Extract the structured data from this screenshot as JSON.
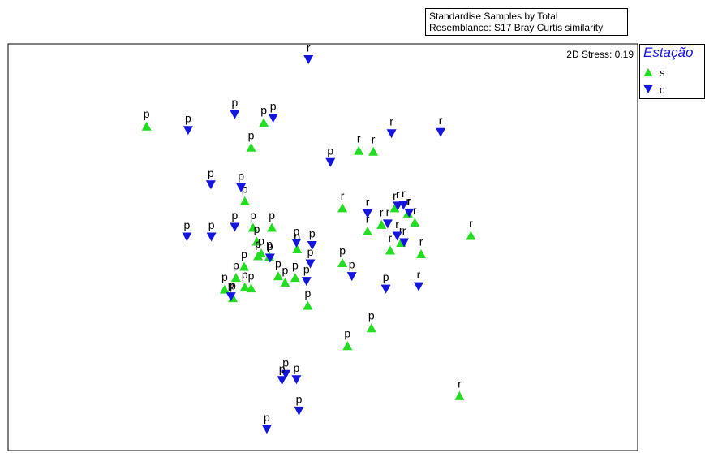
{
  "header": {
    "line1": "Standardise Samples by Total",
    "line2": "Resemblance: S17 Bray Curtis similarity"
  },
  "legend": {
    "title": "Estação",
    "items": [
      {
        "label": "s",
        "symbol": "triangle-up",
        "color": "#22dd22"
      },
      {
        "label": "c",
        "symbol": "triangle-down",
        "color": "#1515e0"
      }
    ]
  },
  "chart_data": {
    "type": "scatter",
    "title": "",
    "xlabel": "",
    "ylabel": "",
    "annotation": "2D Stress: 0.19",
    "xlim": [
      0,
      100
    ],
    "ylim": [
      0,
      100
    ],
    "grid": false,
    "axes_visible": false,
    "legend_position": "right",
    "series": [
      {
        "name": "s",
        "marker": "triangle-up",
        "color": "#22dd22",
        "points": [
          {
            "x": 22.0,
            "y": 79.8,
            "label": "p"
          },
          {
            "x": 40.6,
            "y": 80.7,
            "label": "p"
          },
          {
            "x": 38.6,
            "y": 74.6,
            "label": "p"
          },
          {
            "x": 37.6,
            "y": 61.4,
            "label": "p"
          },
          {
            "x": 38.9,
            "y": 54.9,
            "label": "p"
          },
          {
            "x": 41.9,
            "y": 54.9,
            "label": "p"
          },
          {
            "x": 39.5,
            "y": 51.5,
            "label": "p"
          },
          {
            "x": 40.2,
            "y": 48.6,
            "label": "p"
          },
          {
            "x": 39.7,
            "y": 47.9,
            "label": "p"
          },
          {
            "x": 45.9,
            "y": 49.6,
            "label": "p"
          },
          {
            "x": 41.5,
            "y": 47.8,
            "label": "p"
          },
          {
            "x": 37.5,
            "y": 45.3,
            "label": "p"
          },
          {
            "x": 36.2,
            "y": 42.6,
            "label": "p"
          },
          {
            "x": 37.6,
            "y": 40.3,
            "label": "p"
          },
          {
            "x": 38.6,
            "y": 40.0,
            "label": "p"
          },
          {
            "x": 42.9,
            "y": 43.0,
            "label": "p"
          },
          {
            "x": 44.0,
            "y": 41.4,
            "label": "p"
          },
          {
            "x": 45.6,
            "y": 42.6,
            "label": "p"
          },
          {
            "x": 34.4,
            "y": 39.7,
            "label": "p"
          },
          {
            "x": 35.7,
            "y": 37.6,
            "label": "p"
          },
          {
            "x": 47.6,
            "y": 35.7,
            "label": "p"
          },
          {
            "x": 53.1,
            "y": 46.2,
            "label": "p"
          },
          {
            "x": 57.7,
            "y": 30.2,
            "label": "p"
          },
          {
            "x": 53.9,
            "y": 25.8,
            "label": "p"
          },
          {
            "x": 55.7,
            "y": 73.8,
            "label": "r"
          },
          {
            "x": 58.0,
            "y": 73.6,
            "label": "r"
          },
          {
            "x": 53.1,
            "y": 59.7,
            "label": "r"
          },
          {
            "x": 57.1,
            "y": 54.0,
            "label": "r"
          },
          {
            "x": 59.3,
            "y": 55.6,
            "label": "r"
          },
          {
            "x": 61.4,
            "y": 59.7,
            "label": "r"
          },
          {
            "x": 63.5,
            "y": 58.4,
            "label": "r"
          },
          {
            "x": 64.6,
            "y": 56.1,
            "label": "r"
          },
          {
            "x": 62.4,
            "y": 51.2,
            "label": "r"
          },
          {
            "x": 60.7,
            "y": 49.3,
            "label": "r"
          },
          {
            "x": 65.6,
            "y": 48.4,
            "label": "r"
          },
          {
            "x": 73.5,
            "y": 52.9,
            "label": "r"
          },
          {
            "x": 71.7,
            "y": 13.5,
            "label": "r"
          }
        ]
      },
      {
        "name": "c",
        "marker": "triangle-down",
        "color": "#1515e0",
        "points": [
          {
            "x": 47.7,
            "y": 96.1,
            "label": "r"
          },
          {
            "x": 36.0,
            "y": 82.6,
            "label": "p"
          },
          {
            "x": 42.1,
            "y": 81.7,
            "label": "p"
          },
          {
            "x": 28.6,
            "y": 78.7,
            "label": "p"
          },
          {
            "x": 51.2,
            "y": 70.8,
            "label": "p"
          },
          {
            "x": 60.9,
            "y": 77.9,
            "label": "r"
          },
          {
            "x": 68.7,
            "y": 78.2,
            "label": "r"
          },
          {
            "x": 32.2,
            "y": 65.3,
            "label": "p"
          },
          {
            "x": 37.0,
            "y": 64.6,
            "label": "p"
          },
          {
            "x": 28.4,
            "y": 52.5,
            "label": "p"
          },
          {
            "x": 32.3,
            "y": 52.5,
            "label": "p"
          },
          {
            "x": 36.0,
            "y": 54.9,
            "label": "p"
          },
          {
            "x": 41.6,
            "y": 47.3,
            "label": "p"
          },
          {
            "x": 45.8,
            "y": 51.0,
            "label": "p"
          },
          {
            "x": 48.3,
            "y": 50.4,
            "label": "p"
          },
          {
            "x": 48.0,
            "y": 45.9,
            "label": "p"
          },
          {
            "x": 47.4,
            "y": 41.6,
            "label": "p"
          },
          {
            "x": 35.4,
            "y": 37.8,
            "label": "p"
          },
          {
            "x": 54.6,
            "y": 42.8,
            "label": "p"
          },
          {
            "x": 60.0,
            "y": 39.7,
            "label": "p"
          },
          {
            "x": 65.2,
            "y": 40.3,
            "label": "r"
          },
          {
            "x": 57.1,
            "y": 58.2,
            "label": "r"
          },
          {
            "x": 61.9,
            "y": 60.1,
            "label": "r"
          },
          {
            "x": 62.8,
            "y": 60.3,
            "label": "r"
          },
          {
            "x": 63.7,
            "y": 58.4,
            "label": "r"
          },
          {
            "x": 60.3,
            "y": 55.7,
            "label": "r"
          },
          {
            "x": 61.8,
            "y": 52.7,
            "label": "r"
          },
          {
            "x": 62.9,
            "y": 51.1,
            "label": "r"
          },
          {
            "x": 44.1,
            "y": 18.7,
            "label": "p"
          },
          {
            "x": 43.5,
            "y": 17.2,
            "label": "p"
          },
          {
            "x": 45.8,
            "y": 17.4,
            "label": "p"
          },
          {
            "x": 46.2,
            "y": 9.7,
            "label": "p"
          },
          {
            "x": 41.1,
            "y": 5.2,
            "label": "p"
          }
        ]
      }
    ]
  }
}
